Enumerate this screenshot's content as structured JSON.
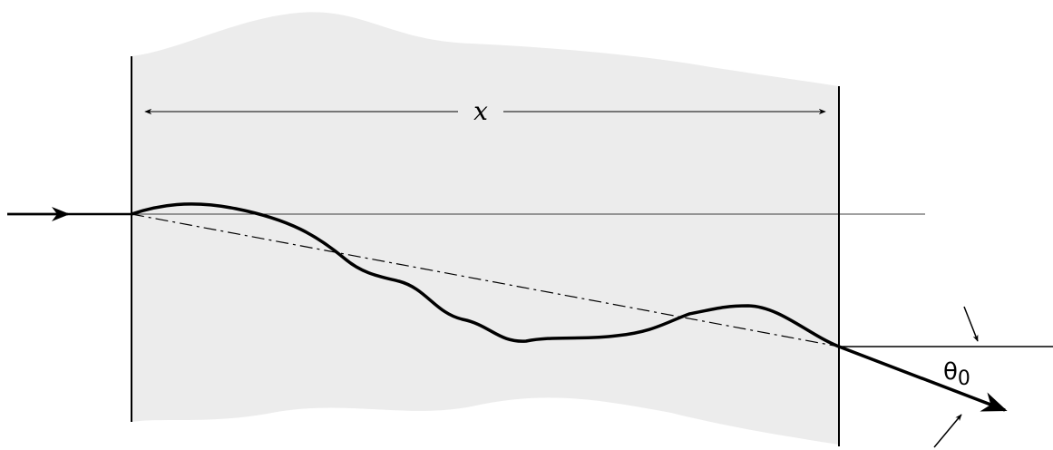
{
  "labels": {
    "distance": "x",
    "angle_symbol": "θ",
    "angle_subscript": "0"
  }
}
